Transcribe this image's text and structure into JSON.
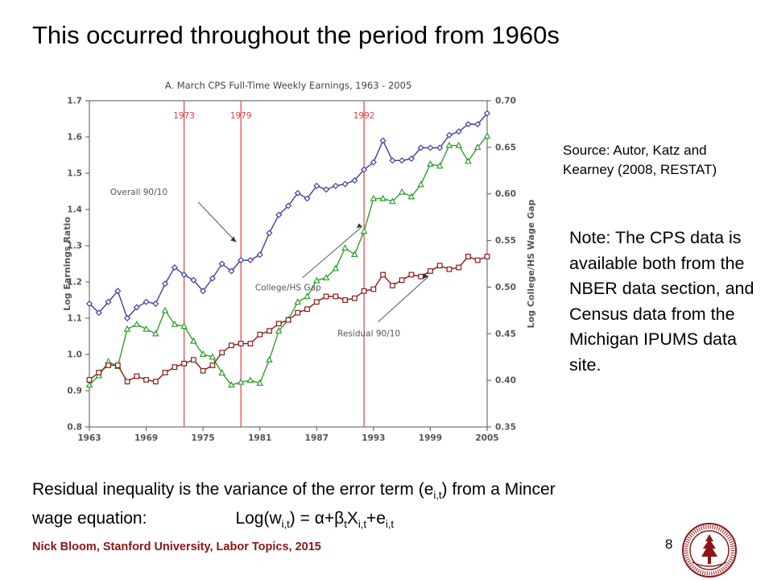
{
  "slide": {
    "title": "This occurred throughout the period from 1960s",
    "source_line1": "Source: Autor, Katz and",
    "source_line2": "Kearney (2008, RESTAT)",
    "note": "Note: The CPS data is available both from the NBER data section, and Census data from the Michigan IPUMS data site.",
    "residual_text": "Residual inequality is the variance of the error term (e",
    "residual_sub": "i,t",
    "residual_text2": ") from a Mincer",
    "residual_line2": "wage equation:",
    "eq_a": "Log(w",
    "eq_sub1": "i,t",
    "eq_b": ") = α+β",
    "eq_sub2": "t",
    "eq_c": "X",
    "eq_sub3": "i,t",
    "eq_d": "+e",
    "eq_sub4": "i,t",
    "footer": "Nick Bloom, Stanford University, Labor Topics, 2015",
    "page_number": "8",
    "seal_text": "LELAND STANFORD JUNIOR UNIVERSITY"
  },
  "chart_data": {
    "type": "line",
    "title": "A. March CPS Full-Time Weekly Earnings, 1963 - 2005",
    "ylabel_left": "Log Earnings Ratio",
    "ylabel_right": "Log College/HS Wage Gap",
    "xlim": [
      1963,
      2005
    ],
    "ylim_left": [
      0.8,
      1.7
    ],
    "ylim_right": [
      0.35,
      0.7
    ],
    "x_ticks": [
      "1963",
      "1969",
      "1975",
      "1981",
      "1987",
      "1993",
      "1999",
      "2005"
    ],
    "y_left_ticks": [
      "0.8",
      "0.9",
      "1.0",
      "1.1",
      "1.2",
      "1.3",
      "1.4",
      "1.5",
      "1.6",
      "1.7"
    ],
    "y_right_ticks": [
      "0.35",
      "0.40",
      "0.45",
      "0.50",
      "0.55",
      "0.60",
      "0.65",
      "0.70"
    ],
    "vlines": [
      {
        "year": 1973,
        "label": "1973"
      },
      {
        "year": 1979,
        "label": "1979"
      },
      {
        "year": 1992,
        "label": "1992"
      }
    ],
    "colors": {
      "overall": "#3f3f9f",
      "college": "#2e9e2e",
      "residual": "#8b1a1a",
      "vline": "#e04040",
      "axis": "#555555"
    },
    "x": [
      1963,
      1964,
      1965,
      1966,
      1967,
      1968,
      1969,
      1970,
      1971,
      1972,
      1973,
      1974,
      1975,
      1976,
      1977,
      1978,
      1979,
      1980,
      1981,
      1982,
      1983,
      1984,
      1985,
      1986,
      1987,
      1988,
      1989,
      1990,
      1991,
      1992,
      1993,
      1994,
      1995,
      1996,
      1997,
      1998,
      1999,
      2000,
      2001,
      2002,
      2003,
      2004,
      2005
    ],
    "series": [
      {
        "name": "Overall 90/10",
        "axis": "left",
        "marker": "diamond",
        "values": [
          1.14,
          1.115,
          1.145,
          1.175,
          1.1,
          1.13,
          1.145,
          1.14,
          1.195,
          1.24,
          1.22,
          1.205,
          1.175,
          1.21,
          1.25,
          1.23,
          1.26,
          1.26,
          1.275,
          1.335,
          1.385,
          1.41,
          1.445,
          1.43,
          1.465,
          1.455,
          1.465,
          1.47,
          1.48,
          1.51,
          1.53,
          1.59,
          1.535,
          1.535,
          1.54,
          1.57,
          1.57,
          1.57,
          1.605,
          1.615,
          1.635,
          1.635,
          1.665
        ]
      },
      {
        "name": "College/HS Gap",
        "axis": "right",
        "marker": "triangle",
        "values": [
          0.395,
          0.405,
          0.42,
          0.415,
          0.455,
          0.46,
          0.455,
          0.45,
          0.475,
          0.46,
          0.458,
          0.442,
          0.428,
          0.425,
          0.408,
          0.395,
          0.398,
          0.4,
          0.397,
          0.422,
          0.453,
          0.465,
          0.484,
          0.49,
          0.507,
          0.51,
          0.52,
          0.542,
          0.535,
          0.56,
          0.595,
          0.595,
          0.592,
          0.602,
          0.597,
          0.61,
          0.632,
          0.63,
          0.652,
          0.652,
          0.635,
          0.65,
          0.662
        ]
      },
      {
        "name": "Residual 90/10",
        "axis": "left",
        "marker": "square",
        "values": [
          0.93,
          0.95,
          0.97,
          0.97,
          0.925,
          0.94,
          0.93,
          0.925,
          0.95,
          0.965,
          0.975,
          0.985,
          0.955,
          0.97,
          1.005,
          1.025,
          1.03,
          1.03,
          1.055,
          1.065,
          1.085,
          1.095,
          1.115,
          1.125,
          1.145,
          1.16,
          1.16,
          1.15,
          1.155,
          1.175,
          1.18,
          1.22,
          1.19,
          1.205,
          1.22,
          1.215,
          1.23,
          1.245,
          1.235,
          1.24,
          1.27,
          1.26,
          1.27
        ]
      }
    ],
    "annotations": [
      {
        "text": "Overall 90/10",
        "series": "Overall 90/10"
      },
      {
        "text": "College/HS Gap",
        "series": "College/HS Gap"
      },
      {
        "text": "Residual 90/10",
        "series": "Residual 90/10"
      }
    ]
  }
}
